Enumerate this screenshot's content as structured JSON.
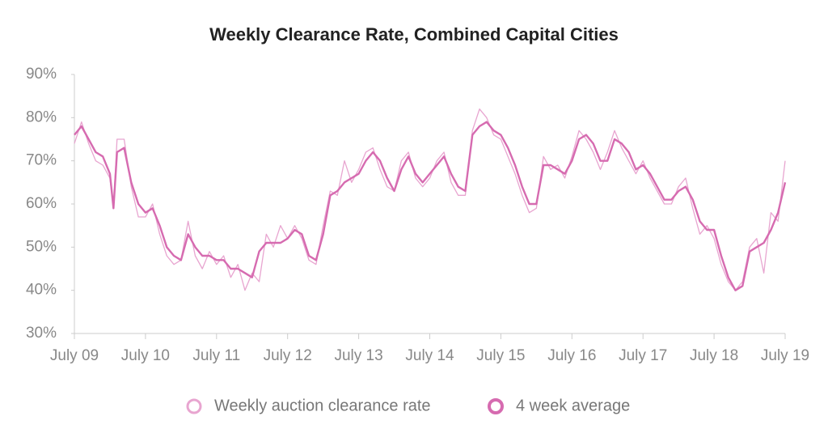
{
  "chart_data": {
    "type": "line",
    "title": "Weekly Clearance Rate, Combined Capital Cities",
    "x": [
      2009.5,
      2009.6,
      2009.7,
      2009.8,
      2009.9,
      2010.0,
      2010.05,
      2010.1,
      2010.2,
      2010.3,
      2010.4,
      2010.5,
      2010.6,
      2010.7,
      2010.8,
      2010.9,
      2011.0,
      2011.1,
      2011.2,
      2011.3,
      2011.4,
      2011.5,
      2011.6,
      2011.7,
      2011.8,
      2011.9,
      2012.0,
      2012.1,
      2012.2,
      2012.3,
      2012.4,
      2012.5,
      2012.6,
      2012.7,
      2012.8,
      2012.9,
      2013.0,
      2013.1,
      2013.2,
      2013.3,
      2013.4,
      2013.5,
      2013.6,
      2013.7,
      2013.8,
      2013.9,
      2014.0,
      2014.1,
      2014.2,
      2014.3,
      2014.4,
      2014.5,
      2014.6,
      2014.7,
      2014.8,
      2014.9,
      2015.0,
      2015.1,
      2015.2,
      2015.3,
      2015.4,
      2015.5,
      2015.6,
      2015.7,
      2015.8,
      2015.9,
      2016.0,
      2016.1,
      2016.2,
      2016.3,
      2016.4,
      2016.5,
      2016.6,
      2016.7,
      2016.8,
      2016.9,
      2017.0,
      2017.1,
      2017.2,
      2017.3,
      2017.4,
      2017.5,
      2017.6,
      2017.7,
      2017.8,
      2017.9,
      2018.0,
      2018.1,
      2018.2,
      2018.3,
      2018.4,
      2018.5,
      2018.6,
      2018.7,
      2018.8,
      2018.9,
      2019.0,
      2019.1,
      2019.2,
      2019.3,
      2019.4,
      2019.5
    ],
    "series": [
      {
        "name": "Weekly auction clearance rate",
        "color": "#e8a5d0",
        "values": [
          74,
          79,
          74,
          70,
          69,
          66,
          59,
          75,
          75,
          64,
          57,
          57,
          60,
          53,
          48,
          46,
          47,
          56,
          48,
          45,
          49,
          46,
          48,
          43,
          46,
          40,
          44,
          42,
          53,
          50,
          55,
          52,
          55,
          52,
          47,
          46,
          55,
          63,
          62,
          70,
          65,
          68,
          72,
          73,
          68,
          64,
          63,
          70,
          72,
          66,
          64,
          66,
          70,
          72,
          65,
          62,
          62,
          77,
          82,
          80,
          76,
          75,
          71,
          67,
          62,
          58,
          59,
          71,
          68,
          69,
          66,
          71,
          77,
          75,
          72,
          68,
          72,
          77,
          73,
          70,
          67,
          70,
          66,
          63,
          60,
          60,
          64,
          66,
          59,
          53,
          55,
          52,
          46,
          42,
          40,
          42,
          50,
          52,
          44,
          58,
          56,
          70
        ]
      },
      {
        "name": "4 week average",
        "color": "#d66bb0",
        "values": [
          76,
          78,
          75,
          72,
          71,
          67,
          59,
          72,
          73,
          65,
          60,
          58,
          59,
          55,
          50,
          48,
          47,
          53,
          50,
          48,
          48,
          47,
          47,
          45,
          45,
          44,
          43,
          49,
          51,
          51,
          51,
          52,
          54,
          53,
          48,
          47,
          53,
          62,
          63,
          65,
          66,
          67,
          70,
          72,
          70,
          66,
          63,
          68,
          71,
          67,
          65,
          67,
          69,
          71,
          67,
          64,
          63,
          76,
          78,
          79,
          77,
          76,
          73,
          69,
          64,
          60,
          60,
          69,
          69,
          68,
          67,
          70,
          75,
          76,
          74,
          70,
          70,
          75,
          74,
          72,
          68,
          69,
          67,
          64,
          61,
          61,
          63,
          64,
          61,
          56,
          54,
          54,
          48,
          43,
          40,
          41,
          49,
          50,
          51,
          54,
          58,
          65
        ]
      }
    ],
    "xlim": [
      2009.5,
      2019.5
    ],
    "xticks": [
      {
        "value": 2009.5,
        "label": "July 09"
      },
      {
        "value": 2010.5,
        "label": "July 10"
      },
      {
        "value": 2011.5,
        "label": "July 11"
      },
      {
        "value": 2012.5,
        "label": "July 12"
      },
      {
        "value": 2013.5,
        "label": "July 13"
      },
      {
        "value": 2014.5,
        "label": "July 14"
      },
      {
        "value": 2015.5,
        "label": "July 15"
      },
      {
        "value": 2016.5,
        "label": "July 16"
      },
      {
        "value": 2017.5,
        "label": "July 17"
      },
      {
        "value": 2018.5,
        "label": "July 18"
      },
      {
        "value": 2019.5,
        "label": "July 19"
      }
    ],
    "ylim": [
      30,
      90
    ],
    "yticks": [
      {
        "value": 30,
        "label": "30%"
      },
      {
        "value": 40,
        "label": "40%"
      },
      {
        "value": 50,
        "label": "50%"
      },
      {
        "value": 60,
        "label": "60%"
      },
      {
        "value": 70,
        "label": "70%"
      },
      {
        "value": 80,
        "label": "80%"
      },
      {
        "value": 90,
        "label": "90%"
      }
    ]
  }
}
